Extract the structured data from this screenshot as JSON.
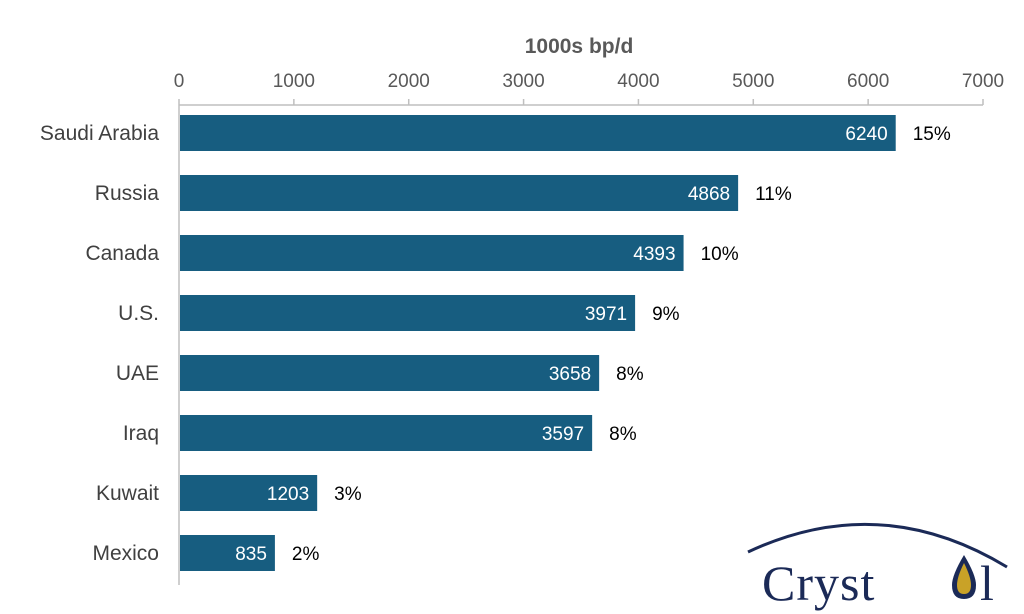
{
  "chart_data": {
    "type": "bar",
    "orientation": "horizontal",
    "title": "",
    "xlabel": "1000s bp/d",
    "ylabel": "",
    "xlim": [
      0,
      7000
    ],
    "xticks": [
      0,
      1000,
      2000,
      3000,
      4000,
      5000,
      6000,
      7000
    ],
    "x_axis_position": "top",
    "grid": false,
    "legend": "none",
    "categories": [
      "Saudi Arabia",
      "Russia",
      "Canada",
      "U.S.",
      "UAE",
      "Iraq",
      "Kuwait",
      "Mexico"
    ],
    "values": [
      6240,
      4868,
      4393,
      3971,
      3658,
      3597,
      1203,
      835
    ],
    "value_labels": [
      "6240",
      "4868",
      "4393",
      "3971",
      "3658",
      "3597",
      "1203",
      "835"
    ],
    "share_labels": [
      "15%",
      "11%",
      "10%",
      "9%",
      "8%",
      "8%",
      "3%",
      "2%"
    ],
    "bar_color": "#175d80"
  },
  "logo": {
    "text_left": "Cryst",
    "text_right": "l",
    "icon": "oil-drop-icon",
    "color": "#1b2a57",
    "accent": "#c9a227"
  }
}
